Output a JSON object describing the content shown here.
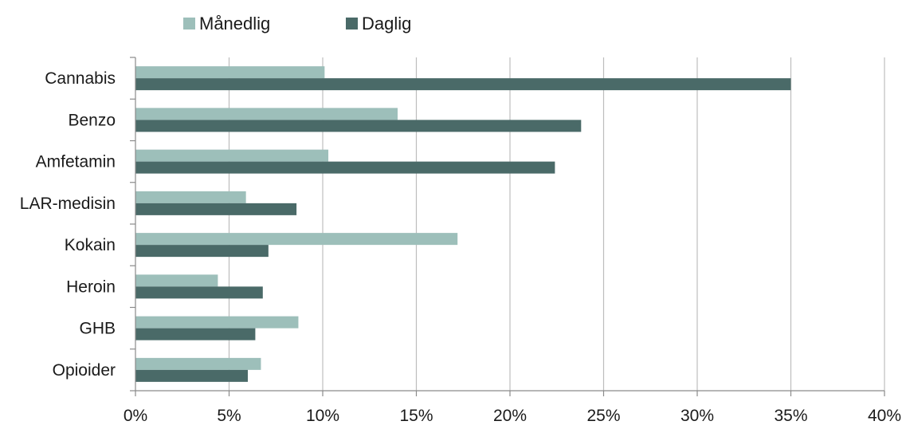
{
  "chart_data": {
    "type": "bar",
    "orientation": "horizontal",
    "categories": [
      "Cannabis",
      "Benzo",
      "Amfetamin",
      "LAR-medisin",
      "Kokain",
      "Heroin",
      "GHB",
      "Opioider"
    ],
    "series": [
      {
        "name": "Månedlig",
        "color": "#9dbfba",
        "values": [
          10.1,
          14.0,
          10.3,
          5.9,
          17.2,
          4.4,
          8.7,
          6.7
        ]
      },
      {
        "name": "Daglig",
        "color": "#4a6a68",
        "values": [
          35.0,
          23.8,
          22.4,
          8.6,
          7.1,
          6.8,
          6.4,
          6.0
        ]
      }
    ],
    "xlim": [
      0,
      40
    ],
    "xticks": [
      0,
      5,
      10,
      15,
      20,
      25,
      30,
      35,
      40
    ],
    "xtick_labels": [
      "0%",
      "5%",
      "10%",
      "15%",
      "20%",
      "25%",
      "30%",
      "35%",
      "40%"
    ],
    "grid": "vertical",
    "legend_position": "top-left",
    "title": "",
    "xlabel": "",
    "ylabel": ""
  }
}
